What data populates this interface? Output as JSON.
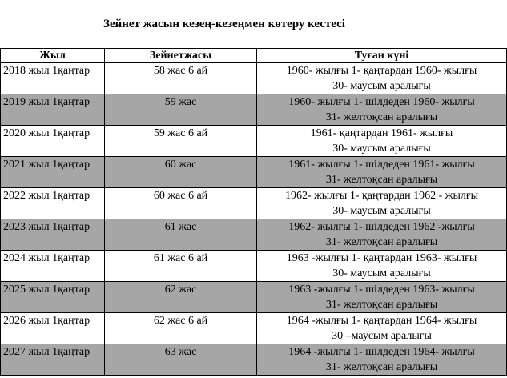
{
  "title": "Зейнет жасын кезең-кезеңмен көтеру кестесі",
  "table": {
    "headers": {
      "year": "Жыл",
      "age": "Зейнетжасы",
      "birth": "Туған күні"
    },
    "rows": [
      {
        "year": "2018 жыл 1қаңтар",
        "age": "58 жас 6 ай",
        "birth_line1": "1960- жылғы 1- қаңтардан 1960- жылғы",
        "birth_line2": "30- маусым аралығы"
      },
      {
        "year": "2019 жыл 1қаңтар",
        "age": "59 жас",
        "birth_line1": "1960- жылғы 1- шілдеден 1960- жылғы",
        "birth_line2": "31- желтоқсан аралығы"
      },
      {
        "year": "2020 жыл 1қаңтар",
        "age": "59 жас 6 ай",
        "birth_line1": "1961- қаңтардан 1961- жылғы",
        "birth_line2": "30- маусым аралығы"
      },
      {
        "year": "2021 жыл 1қаңтар",
        "age": "60 жас",
        "birth_line1": "1961- жылғы 1- шілдеден 1961- жылғы",
        "birth_line2": "31- желтоқсан аралығы"
      },
      {
        "year": "2022 жыл 1қаңтар",
        "age": "60 жас 6 ай",
        "birth_line1": "1962- жылғы 1- қаңтардан 1962 - жылғы",
        "birth_line2": "30- маусым аралығы"
      },
      {
        "year": "2023 жыл 1қаңтар",
        "age": "61 жас",
        "birth_line1": "1962- жылғы 1- шілдеден 1962 -жылғы",
        "birth_line2": "31- желтоқсан аралығы"
      },
      {
        "year": "2024 жыл 1қаңтар",
        "age": "61 жас 6 ай",
        "birth_line1": "1963 -жылғы 1- қаңтардан 1963- жылғы",
        "birth_line2": "30- маусым аралығы"
      },
      {
        "year": "2025 жыл 1қаңтар",
        "age": "62 жас",
        "birth_line1": "1963 -жылғы 1- шілдеден 1963- жылғы",
        "birth_line2": "31- желтоқсан аралығы"
      },
      {
        "year": "2026 жыл 1қаңтар",
        "age": "62 жас 6 ай",
        "birth_line1": "1964 -жылғы 1- қаңтардан 1964- жылғы",
        "birth_line2": "30 –маусым аралығы"
      },
      {
        "year": "2027 жыл 1қаңтар",
        "age": "63 жас",
        "birth_line1": "1964 -жылғы 1- шілдеден 1964- жылғы",
        "birth_line2": "31- желтоқсан аралығы"
      }
    ]
  },
  "colors": {
    "shaded_row": "#a6a6a6",
    "plain_row": "#ffffff",
    "border": "#000000"
  }
}
